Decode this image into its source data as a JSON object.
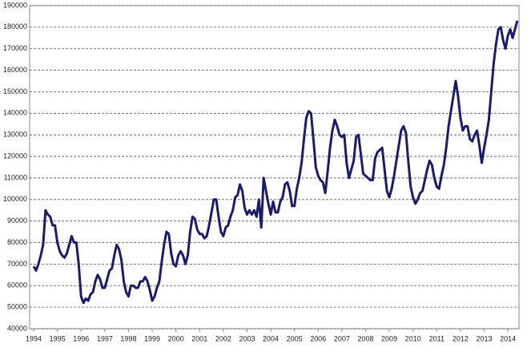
{
  "chart_data": {
    "type": "line",
    "color": "#1b1b6b",
    "grid": true,
    "xlim": [
      1993.83,
      2014.47
    ],
    "ylim": [
      40000,
      190000
    ],
    "xticks": [
      1994,
      1995,
      1996,
      1997,
      1998,
      1999,
      2000,
      2001,
      2002,
      2003,
      2004,
      2005,
      2006,
      2007,
      2008,
      2009,
      2010,
      2011,
      2012,
      2013,
      2014
    ],
    "yticks": [
      40000,
      50000,
      60000,
      70000,
      80000,
      90000,
      100000,
      110000,
      120000,
      130000,
      140000,
      150000,
      160000,
      170000,
      180000,
      190000
    ],
    "x": [
      1994.0,
      1994.1,
      1994.2,
      1994.3,
      1994.4,
      1994.5,
      1994.6,
      1994.7,
      1994.8,
      1994.9,
      1995.0,
      1995.1,
      1995.2,
      1995.3,
      1995.4,
      1995.5,
      1995.6,
      1995.7,
      1995.8,
      1995.9,
      1996.0,
      1996.1,
      1996.2,
      1996.3,
      1996.4,
      1996.5,
      1996.6,
      1996.7,
      1996.8,
      1996.9,
      1997.0,
      1997.1,
      1997.2,
      1997.3,
      1997.4,
      1997.5,
      1997.6,
      1997.7,
      1997.8,
      1997.9,
      1998.0,
      1998.1,
      1998.2,
      1998.3,
      1998.4,
      1998.5,
      1998.6,
      1998.7,
      1998.8,
      1998.9,
      1999.0,
      1999.1,
      1999.2,
      1999.3,
      1999.4,
      1999.5,
      1999.6,
      1999.7,
      1999.8,
      1999.9,
      2000.0,
      2000.1,
      2000.2,
      2000.3,
      2000.4,
      2000.5,
      2000.6,
      2000.7,
      2000.8,
      2000.9,
      2001.0,
      2001.1,
      2001.2,
      2001.3,
      2001.4,
      2001.5,
      2001.6,
      2001.7,
      2001.8,
      2001.9,
      2002.0,
      2002.1,
      2002.2,
      2002.3,
      2002.4,
      2002.5,
      2002.6,
      2002.7,
      2002.8,
      2002.9,
      2003.0,
      2003.1,
      2003.2,
      2003.3,
      2003.4,
      2003.5,
      2003.6,
      2003.7,
      2003.8,
      2003.9,
      2004.0,
      2004.1,
      2004.2,
      2004.3,
      2004.4,
      2004.5,
      2004.6,
      2004.7,
      2004.8,
      2004.9,
      2005.0,
      2005.1,
      2005.2,
      2005.3,
      2005.4,
      2005.5,
      2005.6,
      2005.7,
      2005.8,
      2005.9,
      2006.0,
      2006.1,
      2006.2,
      2006.3,
      2006.4,
      2006.5,
      2006.6,
      2006.7,
      2006.8,
      2006.9,
      2007.0,
      2007.1,
      2007.2,
      2007.3,
      2007.4,
      2007.5,
      2007.6,
      2007.7,
      2007.8,
      2007.9,
      2008.0,
      2008.1,
      2008.2,
      2008.3,
      2008.4,
      2008.5,
      2008.6,
      2008.7,
      2008.8,
      2008.9,
      2009.0,
      2009.1,
      2009.2,
      2009.3,
      2009.4,
      2009.5,
      2009.6,
      2009.7,
      2009.8,
      2009.9,
      2010.0,
      2010.1,
      2010.2,
      2010.3,
      2010.4,
      2010.5,
      2010.6,
      2010.7,
      2010.8,
      2010.9,
      2011.0,
      2011.1,
      2011.2,
      2011.3,
      2011.4,
      2011.5,
      2011.6,
      2011.7,
      2011.8,
      2011.9,
      2012.0,
      2012.1,
      2012.2,
      2012.3,
      2012.4,
      2012.5,
      2012.6,
      2012.7,
      2012.8,
      2012.9,
      2013.0,
      2013.1,
      2013.2,
      2013.3,
      2013.4,
      2013.5,
      2013.6,
      2013.7,
      2013.8,
      2013.9,
      2014.0,
      2014.1,
      2014.2,
      2014.3,
      2014.4
    ],
    "values": [
      69000,
      67000,
      70000,
      74000,
      79000,
      95000,
      93000,
      92000,
      88000,
      88000,
      80000,
      76000,
      74000,
      73000,
      75000,
      79000,
      83000,
      80000,
      80000,
      70000,
      55000,
      52000,
      54000,
      53000,
      56000,
      57000,
      62000,
      65000,
      63000,
      59000,
      59000,
      63000,
      67000,
      68000,
      74000,
      79000,
      77000,
      72000,
      62000,
      57000,
      55000,
      60000,
      60000,
      59000,
      59000,
      62000,
      62000,
      64000,
      62000,
      58000,
      53000,
      55000,
      59000,
      62000,
      71000,
      79000,
      85000,
      84000,
      75000,
      70000,
      69000,
      74000,
      76000,
      74000,
      70000,
      74000,
      85000,
      92000,
      91000,
      86000,
      84000,
      84000,
      82000,
      83000,
      88000,
      94000,
      100000,
      100000,
      92000,
      85000,
      83000,
      87000,
      88000,
      92000,
      95000,
      101000,
      102000,
      107000,
      104000,
      96000,
      93000,
      95000,
      93000,
      95000,
      92000,
      100000,
      87000,
      110000,
      104000,
      98000,
      93000,
      99000,
      94000,
      94000,
      99000,
      101000,
      107000,
      108000,
      104000,
      97000,
      97000,
      105000,
      110000,
      117000,
      128000,
      138000,
      141000,
      140000,
      128000,
      115000,
      111000,
      109000,
      108000,
      103000,
      113000,
      124000,
      132000,
      137000,
      134000,
      130000,
      129000,
      130000,
      117000,
      110000,
      114000,
      118000,
      129000,
      130000,
      121000,
      112000,
      111000,
      110000,
      109000,
      109000,
      119000,
      122000,
      123000,
      124000,
      114000,
      104000,
      101000,
      105000,
      111000,
      118000,
      125000,
      132000,
      134000,
      131000,
      118000,
      106000,
      101000,
      98000,
      100000,
      103000,
      104000,
      109000,
      114000,
      118000,
      116000,
      110000,
      106000,
      105000,
      111000,
      116000,
      124000,
      134000,
      141000,
      148000,
      155000,
      148000,
      138000,
      132000,
      134000,
      134000,
      128000,
      127000,
      130000,
      132000,
      125000,
      117000,
      124000,
      130000,
      137000,
      150000,
      163000,
      172000,
      179000,
      180000,
      174000,
      170000,
      176000,
      179000,
      175000,
      179000,
      183000
    ]
  }
}
